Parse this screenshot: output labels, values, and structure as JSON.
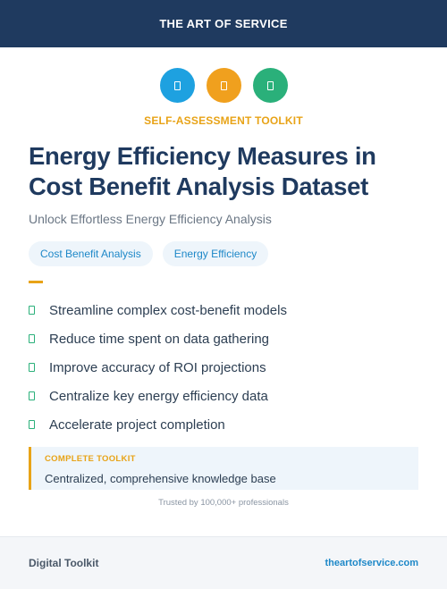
{
  "header": {
    "brand": "THE ART OF SERVICE"
  },
  "icons": [
    {
      "name": "document-icon",
      "color": "#1ea1e0"
    },
    {
      "name": "document-icon",
      "color": "#f0a01e"
    },
    {
      "name": "document-icon",
      "color": "#2ab07a"
    }
  ],
  "kicker": "SELF-ASSESSMENT TOOLKIT",
  "title": "Energy Efficiency Measures in Cost Benefit Analysis Dataset",
  "subtitle": "Unlock Effortless Energy Efficiency Analysis",
  "tags": [
    "Cost Benefit Analysis",
    "Energy Efficiency"
  ],
  "features": [
    "Streamline complex cost-benefit models",
    "Reduce time spent on data gathering",
    "Improve accuracy of ROI projections",
    "Centralize key energy efficiency data",
    "Accelerate project completion"
  ],
  "callout": {
    "kicker": "COMPLETE TOOLKIT",
    "text": "Centralized, comprehensive knowledge base"
  },
  "trust": "Trusted by 100,000+ professionals",
  "footer": {
    "left": "Digital Toolkit",
    "right": "theartofservice.com"
  },
  "colors": {
    "navy": "#1f3a5f",
    "accent": "#e8a317",
    "link": "#1e88c8",
    "check": "#2ab07a"
  }
}
